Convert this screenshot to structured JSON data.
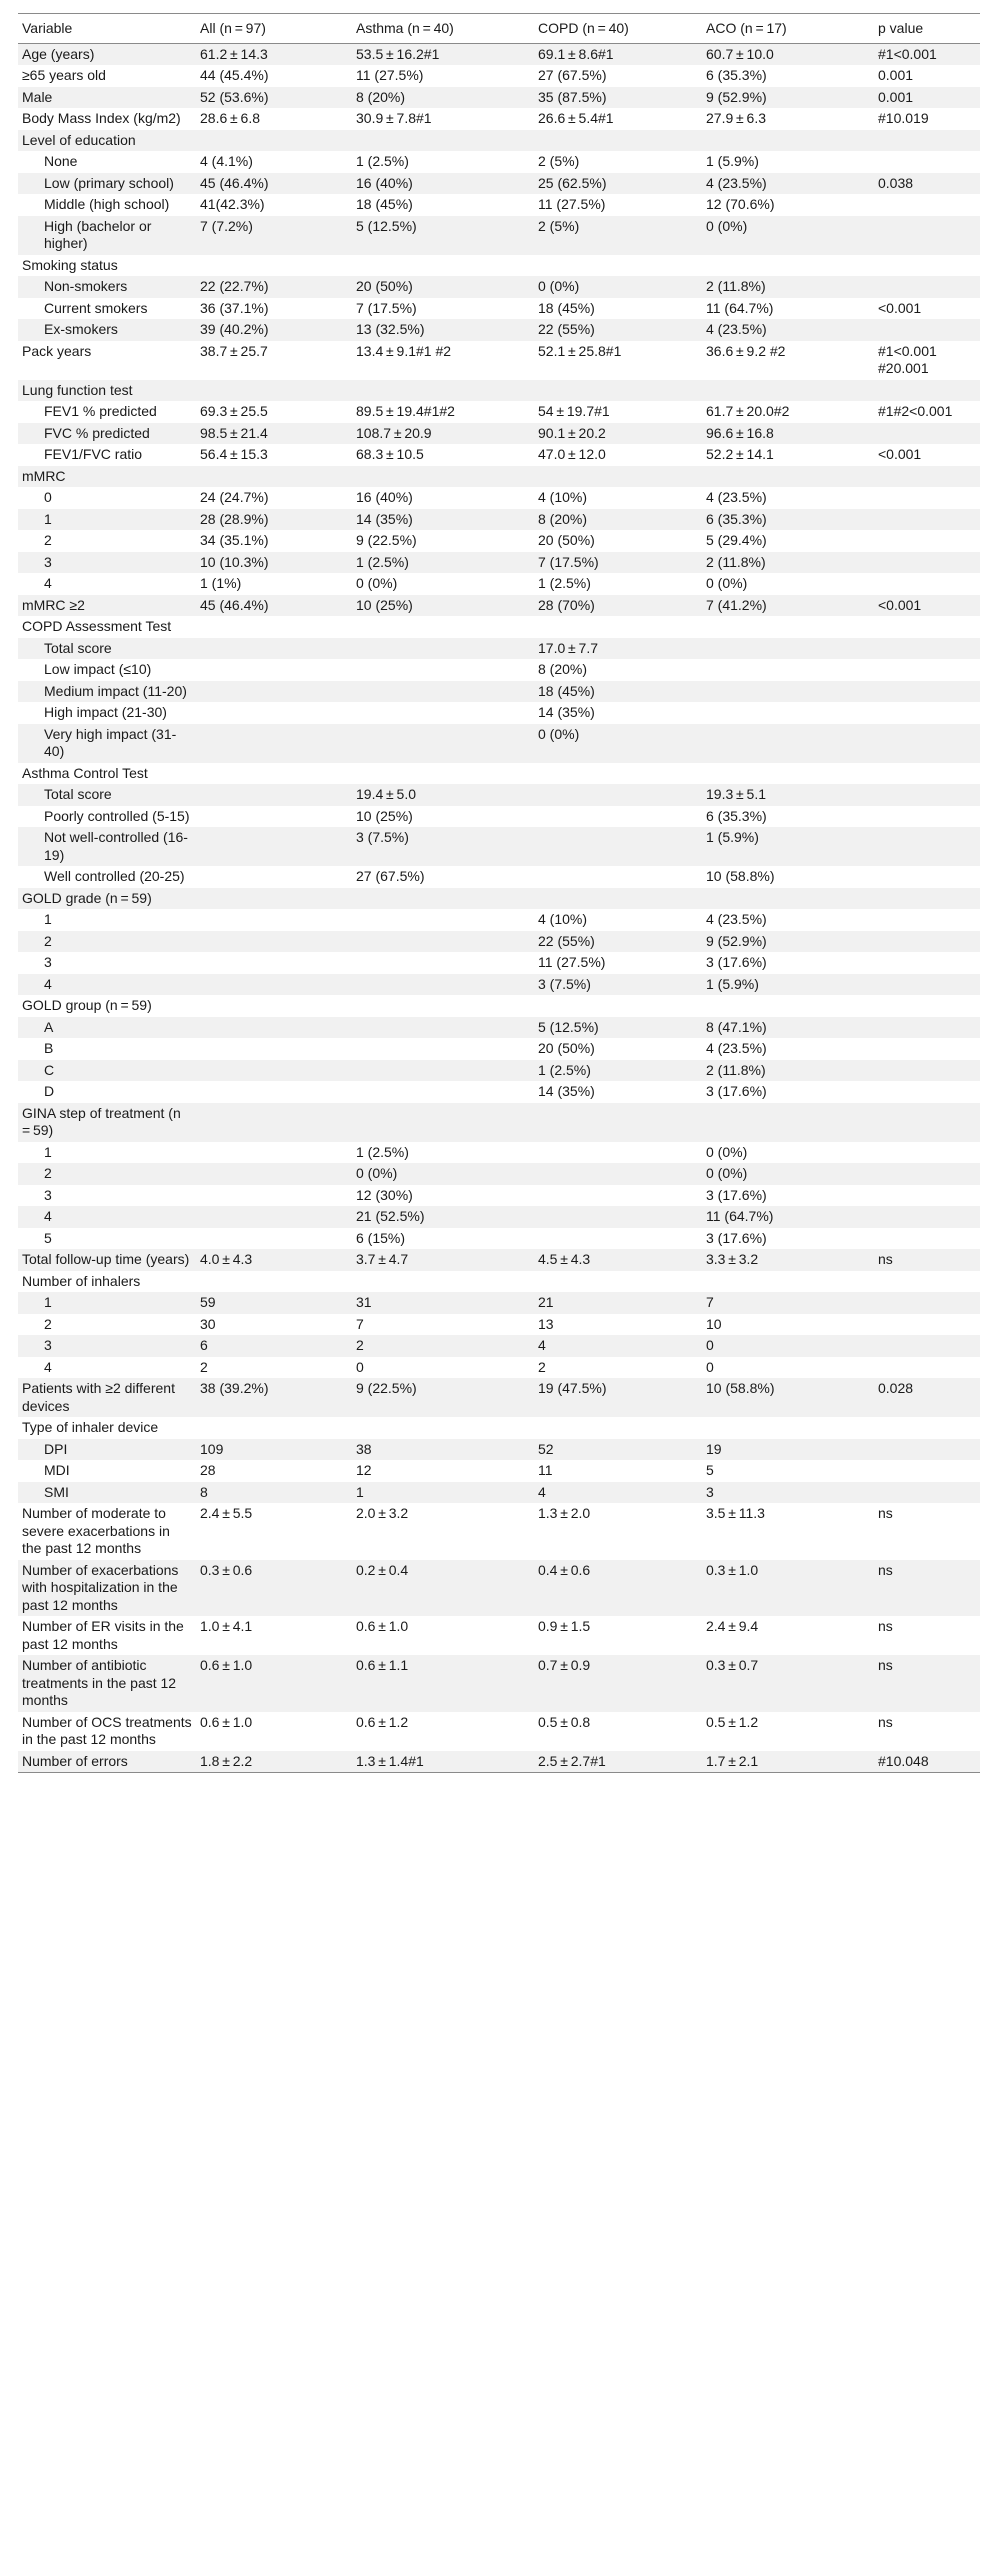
{
  "table": {
    "headers": [
      "Variable",
      "All (n = 97)",
      "Asthma (n = 40)",
      "COPD (n = 40)",
      "ACO (n = 17)",
      "p value"
    ],
    "rows": [
      {
        "label": "Age (years)",
        "sub": false,
        "cells": [
          "61.2 ± 14.3",
          "53.5 ± 16.2#1",
          "69.1 ± 8.6#1",
          "60.7 ± 10.0",
          "#1<0.001"
        ]
      },
      {
        "label": "≥65 years old",
        "sub": false,
        "cells": [
          "44 (45.4%)",
          "11 (27.5%)",
          "27 (67.5%)",
          "6 (35.3%)",
          "0.001"
        ]
      },
      {
        "label": "Male",
        "sub": false,
        "cells": [
          "52 (53.6%)",
          "8 (20%)",
          "35 (87.5%)",
          "9 (52.9%)",
          "0.001"
        ]
      },
      {
        "label": "Body Mass Index (kg/m2)",
        "sub": false,
        "cells": [
          "28.6 ± 6.8",
          "30.9 ± 7.8#1",
          "26.6 ± 5.4#1",
          "27.9 ± 6.3",
          "#10.019"
        ]
      },
      {
        "label": "Level of education",
        "sub": false,
        "cells": [
          "",
          "",
          "",
          "",
          ""
        ]
      },
      {
        "label": "None",
        "sub": true,
        "cells": [
          "4 (4.1%)",
          "1 (2.5%)",
          "2 (5%)",
          "1 (5.9%)",
          ""
        ]
      },
      {
        "label": "Low (primary school)",
        "sub": true,
        "cells": [
          "45 (46.4%)",
          "16 (40%)",
          "25 (62.5%)",
          "4 (23.5%)",
          "0.038"
        ]
      },
      {
        "label": "Middle (high school)",
        "sub": true,
        "cells": [
          "41(42.3%)",
          "18 (45%)",
          "11 (27.5%)",
          "12 (70.6%)",
          ""
        ]
      },
      {
        "label": "High (bachelor or higher)",
        "sub": true,
        "cells": [
          "7 (7.2%)",
          "5 (12.5%)",
          "2 (5%)",
          "0 (0%)",
          ""
        ]
      },
      {
        "label": "Smoking status",
        "sub": false,
        "cells": [
          "",
          "",
          "",
          "",
          ""
        ]
      },
      {
        "label": "Non-smokers",
        "sub": true,
        "cells": [
          "22 (22.7%)",
          "20 (50%)",
          "0 (0%)",
          "2 (11.8%)",
          ""
        ]
      },
      {
        "label": "Current smokers",
        "sub": true,
        "cells": [
          "36 (37.1%)",
          "7 (17.5%)",
          "18 (45%)",
          "11 (64.7%)",
          "<0.001"
        ]
      },
      {
        "label": "Ex-smokers",
        "sub": true,
        "cells": [
          "39 (40.2%)",
          "13 (32.5%)",
          "22 (55%)",
          "4 (23.5%)",
          ""
        ]
      },
      {
        "label": "Pack years",
        "sub": false,
        "cells": [
          "38.7 ± 25.7",
          "13.4 ± 9.1#1 #2",
          "52.1 ± 25.8#1",
          "36.6 ± 9.2 #2",
          "#1<0.001\n#20.001"
        ]
      },
      {
        "label": "Lung function test",
        "sub": false,
        "cells": [
          "",
          "",
          "",
          "",
          ""
        ]
      },
      {
        "label": "FEV1 % predicted",
        "sub": true,
        "cells": [
          "69.3 ± 25.5",
          "89.5 ± 19.4#1#2",
          "54 ± 19.7#1",
          "61.7 ± 20.0#2",
          "#1#2<0.001"
        ]
      },
      {
        "label": "FVC % predicted",
        "sub": true,
        "cells": [
          "98.5 ± 21.4",
          "108.7 ± 20.9",
          "90.1 ± 20.2",
          "96.6 ± 16.8",
          ""
        ]
      },
      {
        "label": "FEV1/FVC ratio",
        "sub": true,
        "cells": [
          "56.4 ± 15.3",
          "68.3 ± 10.5",
          "47.0 ± 12.0",
          "52.2 ± 14.1",
          "<0.001"
        ]
      },
      {
        "label": "mMRC",
        "sub": false,
        "cells": [
          "",
          "",
          "",
          "",
          ""
        ]
      },
      {
        "label": "0",
        "sub": true,
        "cells": [
          "24 (24.7%)",
          "16 (40%)",
          "4 (10%)",
          "4 (23.5%)",
          ""
        ]
      },
      {
        "label": "1",
        "sub": true,
        "cells": [
          "28 (28.9%)",
          "14 (35%)",
          "8 (20%)",
          "6 (35.3%)",
          ""
        ]
      },
      {
        "label": "2",
        "sub": true,
        "cells": [
          "34 (35.1%)",
          "9 (22.5%)",
          "20 (50%)",
          "5 (29.4%)",
          ""
        ]
      },
      {
        "label": "3",
        "sub": true,
        "cells": [
          "10 (10.3%)",
          "1 (2.5%)",
          "7 (17.5%)",
          "2 (11.8%)",
          ""
        ]
      },
      {
        "label": "4",
        "sub": true,
        "cells": [
          "1 (1%)",
          "0 (0%)",
          "1 (2.5%)",
          "0 (0%)",
          ""
        ]
      },
      {
        "label": "mMRC ≥2",
        "sub": false,
        "cells": [
          "45 (46.4%)",
          "10 (25%)",
          "28 (70%)",
          "7 (41.2%)",
          "<0.001"
        ]
      },
      {
        "label": "COPD Assessment Test",
        "sub": false,
        "cells": [
          "",
          "",
          "",
          "",
          ""
        ]
      },
      {
        "label": "Total score",
        "sub": true,
        "cells": [
          "",
          "",
          "17.0 ± 7.7",
          "",
          ""
        ]
      },
      {
        "label": "Low impact (≤10)",
        "sub": true,
        "cells": [
          "",
          "",
          "8 (20%)",
          "",
          ""
        ]
      },
      {
        "label": "Medium impact (11-20)",
        "sub": true,
        "cells": [
          "",
          "",
          "18 (45%)",
          "",
          ""
        ]
      },
      {
        "label": "High impact (21-30)",
        "sub": true,
        "cells": [
          "",
          "",
          "14 (35%)",
          "",
          ""
        ]
      },
      {
        "label": "Very high impact (31-40)",
        "sub": true,
        "cells": [
          "",
          "",
          "0 (0%)",
          "",
          ""
        ]
      },
      {
        "label": "Asthma Control Test",
        "sub": false,
        "cells": [
          "",
          "",
          "",
          "",
          ""
        ]
      },
      {
        "label": "Total score",
        "sub": true,
        "cells": [
          "",
          "19.4 ± 5.0",
          "",
          "19.3 ± 5.1",
          ""
        ]
      },
      {
        "label": "Poorly controlled (5-15)",
        "sub": true,
        "cells": [
          "",
          "10 (25%)",
          "",
          "6 (35.3%)",
          ""
        ]
      },
      {
        "label": "Not well-controlled (16-19)",
        "sub": true,
        "cells": [
          "",
          "3 (7.5%)",
          "",
          "1 (5.9%)",
          ""
        ]
      },
      {
        "label": "Well controlled (20-25)",
        "sub": true,
        "cells": [
          "",
          "27 (67.5%)",
          "",
          "10 (58.8%)",
          ""
        ]
      },
      {
        "label": "GOLD grade (n = 59)",
        "sub": false,
        "cells": [
          "",
          "",
          "",
          "",
          ""
        ]
      },
      {
        "label": "1",
        "sub": true,
        "cells": [
          "",
          "",
          "4 (10%)",
          "4 (23.5%)",
          ""
        ]
      },
      {
        "label": "2",
        "sub": true,
        "cells": [
          "",
          "",
          "22 (55%)",
          "9 (52.9%)",
          ""
        ]
      },
      {
        "label": "3",
        "sub": true,
        "cells": [
          "",
          "",
          "11 (27.5%)",
          "3 (17.6%)",
          ""
        ]
      },
      {
        "label": "4",
        "sub": true,
        "cells": [
          "",
          "",
          "3 (7.5%)",
          "1 (5.9%)",
          ""
        ]
      },
      {
        "label": "GOLD group (n = 59)",
        "sub": false,
        "cells": [
          "",
          "",
          "",
          "",
          ""
        ]
      },
      {
        "label": "A",
        "sub": true,
        "cells": [
          "",
          "",
          "5 (12.5%)",
          "8 (47.1%)",
          ""
        ]
      },
      {
        "label": "B",
        "sub": true,
        "cells": [
          "",
          "",
          "20 (50%)",
          "4 (23.5%)",
          ""
        ]
      },
      {
        "label": "C",
        "sub": true,
        "cells": [
          "",
          "",
          "1 (2.5%)",
          "2 (11.8%)",
          ""
        ]
      },
      {
        "label": "D",
        "sub": true,
        "cells": [
          "",
          "",
          "14 (35%)",
          "3 (17.6%)",
          ""
        ]
      },
      {
        "label": "GINA step of treatment (n = 59)",
        "sub": false,
        "cells": [
          "",
          "",
          "",
          "",
          ""
        ]
      },
      {
        "label": "1",
        "sub": true,
        "cells": [
          "",
          "1 (2.5%)",
          "",
          "0 (0%)",
          ""
        ]
      },
      {
        "label": "2",
        "sub": true,
        "cells": [
          "",
          "0 (0%)",
          "",
          "0 (0%)",
          ""
        ]
      },
      {
        "label": "3",
        "sub": true,
        "cells": [
          "",
          "12 (30%)",
          "",
          "3 (17.6%)",
          ""
        ]
      },
      {
        "label": "4",
        "sub": true,
        "cells": [
          "",
          "21 (52.5%)",
          "",
          "11 (64.7%)",
          ""
        ]
      },
      {
        "label": "5",
        "sub": true,
        "cells": [
          "",
          "6 (15%)",
          "",
          "3 (17.6%)",
          ""
        ]
      },
      {
        "label": "Total follow-up time (years)",
        "sub": false,
        "cells": [
          "4.0 ± 4.3",
          "3.7 ± 4.7",
          "4.5 ± 4.3",
          "3.3 ± 3.2",
          "ns"
        ]
      },
      {
        "label": "Number of inhalers",
        "sub": false,
        "cells": [
          "",
          "",
          "",
          "",
          ""
        ]
      },
      {
        "label": "1",
        "sub": true,
        "cells": [
          "59",
          "31",
          "21",
          "7",
          ""
        ]
      },
      {
        "label": "2",
        "sub": true,
        "cells": [
          "30",
          "7",
          "13",
          "10",
          ""
        ]
      },
      {
        "label": "3",
        "sub": true,
        "cells": [
          "6",
          "2",
          "4",
          "0",
          ""
        ]
      },
      {
        "label": "4",
        "sub": true,
        "cells": [
          "2",
          "0",
          "2",
          "0",
          ""
        ]
      },
      {
        "label": "Patients with ≥2 different devices",
        "sub": false,
        "cells": [
          "38 (39.2%)",
          "9 (22.5%)",
          "19 (47.5%)",
          "10 (58.8%)",
          "0.028"
        ]
      },
      {
        "label": "Type of inhaler device",
        "sub": false,
        "cells": [
          "",
          "",
          "",
          "",
          ""
        ]
      },
      {
        "label": "DPI",
        "sub": true,
        "cells": [
          "109",
          "38",
          "52",
          "19",
          ""
        ]
      },
      {
        "label": "MDI",
        "sub": true,
        "cells": [
          "28",
          "12",
          "11",
          "5",
          ""
        ]
      },
      {
        "label": "SMI",
        "sub": true,
        "cells": [
          "8",
          "1",
          "4",
          "3",
          ""
        ]
      },
      {
        "label": "Number of moderate to severe exacerbations in the past 12 months",
        "sub": false,
        "cells": [
          "2.4 ± 5.5",
          "2.0 ± 3.2",
          "1.3 ± 2.0",
          "3.5 ± 11.3",
          "ns"
        ]
      },
      {
        "label": "Number of exacerbations with hospitalization in the past 12 months",
        "sub": false,
        "cells": [
          "0.3 ± 0.6",
          "0.2 ± 0.4",
          "0.4 ± 0.6",
          "0.3 ± 1.0",
          "ns"
        ]
      },
      {
        "label": "Number of ER visits in the past 12 months",
        "sub": false,
        "cells": [
          "1.0 ± 4.1",
          "0.6 ± 1.0",
          "0.9 ± 1.5",
          "2.4 ± 9.4",
          "ns"
        ]
      },
      {
        "label": "Number of antibiotic treatments in the past 12 months",
        "sub": false,
        "cells": [
          "0.6 ± 1.0",
          "0.6 ± 1.1",
          "0.7 ± 0.9",
          "0.3 ± 0.7",
          "ns"
        ]
      },
      {
        "label": "Number of OCS treatments in the past 12 months",
        "sub": false,
        "cells": [
          "0.6 ± 1.0",
          "0.6 ± 1.2",
          "0.5 ± 0.8",
          "0.5 ± 1.2",
          "ns"
        ]
      },
      {
        "label": "Number of errors",
        "sub": false,
        "cells": [
          "1.8 ± 2.2",
          "1.3 ± 1.4#1",
          "2.5 ± 2.7#1",
          "1.7 ± 2.1",
          "#10.048"
        ]
      }
    ]
  }
}
